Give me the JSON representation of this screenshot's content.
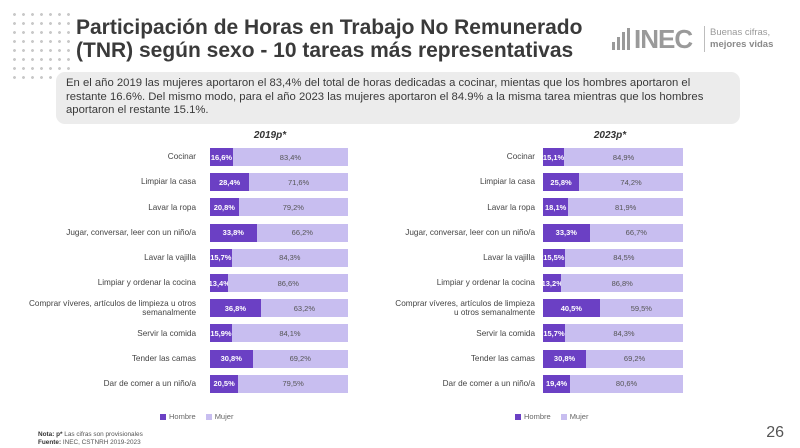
{
  "title": {
    "line1": "Participación de Horas en Trabajo No Remunerado",
    "line2": "(TNR) según sexo - 10 tareas más representativas"
  },
  "logo": {
    "wordmark": "INEC",
    "tagline_1": "Buenas cifras,",
    "tagline_2": "mejores vidas"
  },
  "summary": "En el año 2019 las mujeres aportaron el 83,4% del total de horas dedicadas a cocinar, mientas que los hombres aportaron el restante 16.6%. Del mismo modo, para el año 2023 las mujeres aportaron el 84.9% a la misma tarea mientras que los hombres aportaron el restante 15.1%.",
  "colors": {
    "hombre": "#6b40c4",
    "mujer": "#c8bef0"
  },
  "chart_data": [
    {
      "type": "bar",
      "orientation": "horizontal",
      "stacked": true,
      "title": "2019p*",
      "categories": [
        "Cocinar",
        "Limpiar la casa",
        "Lavar la ropa",
        "Jugar, conversar, leer con un niño/a",
        "Lavar la vajilla",
        "Limpiar y ordenar la cocina",
        "Comprar víveres, artículos de limpieza u otros semanalmente",
        "Servir la comida",
        "Tender las camas",
        "Dar de comer a un niño/a"
      ],
      "series": [
        {
          "name": "Hombre",
          "values": [
            16.6,
            28.4,
            20.8,
            33.8,
            15.7,
            13.4,
            36.8,
            15.9,
            30.8,
            20.5
          ],
          "labels": [
            "16,6%",
            "28,4%",
            "20,8%",
            "33,8%",
            "15,7%",
            "13,4%",
            "36,8%",
            "15,9%",
            "30,8%",
            "20,5%"
          ]
        },
        {
          "name": "Mujer",
          "values": [
            83.4,
            71.6,
            79.2,
            66.2,
            84.3,
            86.6,
            63.2,
            84.1,
            69.2,
            79.5
          ],
          "labels": [
            "83,4%",
            "71,6%",
            "79,2%",
            "66,2%",
            "84,3%",
            "86,6%",
            "63,2%",
            "84,1%",
            "69,2%",
            "79,5%"
          ]
        }
      ],
      "xlim": [
        0,
        100
      ],
      "legend": "bottom-left"
    },
    {
      "type": "bar",
      "orientation": "horizontal",
      "stacked": true,
      "title": "2023p*",
      "categories": [
        "Cocinar",
        "Limpiar la casa",
        "Lavar la ropa",
        "Jugar, conversar, leer con un niño/a",
        "Lavar la vajilla",
        "Limpiar y ordenar la cocina",
        "Comprar víveres, artículos de limpieza u otros semanalmente",
        "Servir la comida",
        "Tender las camas",
        "Dar de comer a un niño/a"
      ],
      "series": [
        {
          "name": "Hombre",
          "values": [
            15.1,
            25.8,
            18.1,
            33.3,
            15.5,
            13.2,
            40.5,
            15.7,
            30.8,
            19.4
          ],
          "labels": [
            "15,1%",
            "25,8%",
            "18,1%",
            "33,3%",
            "15,5%",
            "13,2%",
            "40,5%",
            "15,7%",
            "30,8%",
            "19,4%"
          ]
        },
        {
          "name": "Mujer",
          "values": [
            84.9,
            74.2,
            81.9,
            66.7,
            84.5,
            86.8,
            59.5,
            84.3,
            69.2,
            80.6
          ],
          "labels": [
            "84,9%",
            "74,2%",
            "81,9%",
            "66,7%",
            "84,5%",
            "86,8%",
            "59,5%",
            "84,3%",
            "69,2%",
            "80,6%"
          ]
        }
      ],
      "xlim": [
        0,
        100
      ],
      "legend": "bottom-left"
    }
  ],
  "legend": {
    "hombre": "Hombre",
    "mujer": "Mujer"
  },
  "footnote": {
    "nota_label": "Nota: p*",
    "nota_text": "Las cifras son provisionales",
    "fuente_label": "Fuente:",
    "fuente_text": "INEC, CSTNRH 2019-2023"
  },
  "page_number": "26"
}
